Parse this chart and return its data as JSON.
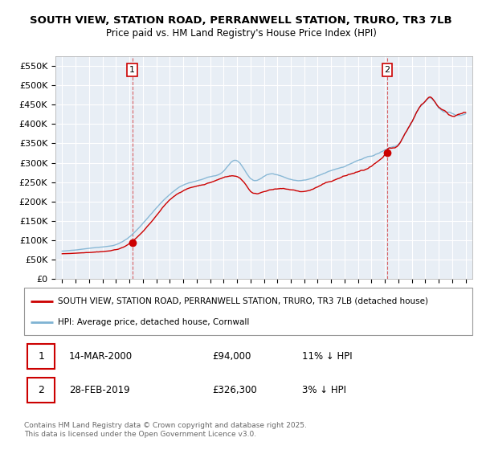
{
  "title": "SOUTH VIEW, STATION ROAD, PERRANWELL STATION, TRURO, TR3 7LB",
  "subtitle": "Price paid vs. HM Land Registry's House Price Index (HPI)",
  "ylabel_ticks": [
    "£0",
    "£50K",
    "£100K",
    "£150K",
    "£200K",
    "£250K",
    "£300K",
    "£350K",
    "£400K",
    "£450K",
    "£500K",
    "£550K"
  ],
  "ytick_values": [
    0,
    50000,
    100000,
    150000,
    200000,
    250000,
    300000,
    350000,
    400000,
    450000,
    500000,
    550000
  ],
  "ylim": [
    0,
    575000
  ],
  "transaction1_x": 2000.21,
  "transaction1_price": 94000,
  "transaction2_x": 2019.17,
  "transaction2_price": 326300,
  "legend_line1": "SOUTH VIEW, STATION ROAD, PERRANWELL STATION, TRURO, TR3 7LB (detached house)",
  "legend_line2": "HPI: Average price, detached house, Cornwall",
  "footer": "Contains HM Land Registry data © Crown copyright and database right 2025.\nThis data is licensed under the Open Government Licence v3.0.",
  "hpi_color": "#7fb3d3",
  "property_color": "#cc0000",
  "vline_color": "#cc0000",
  "background_color": "#ffffff",
  "chart_bg": "#e8eef5",
  "grid_color": "#ffffff"
}
